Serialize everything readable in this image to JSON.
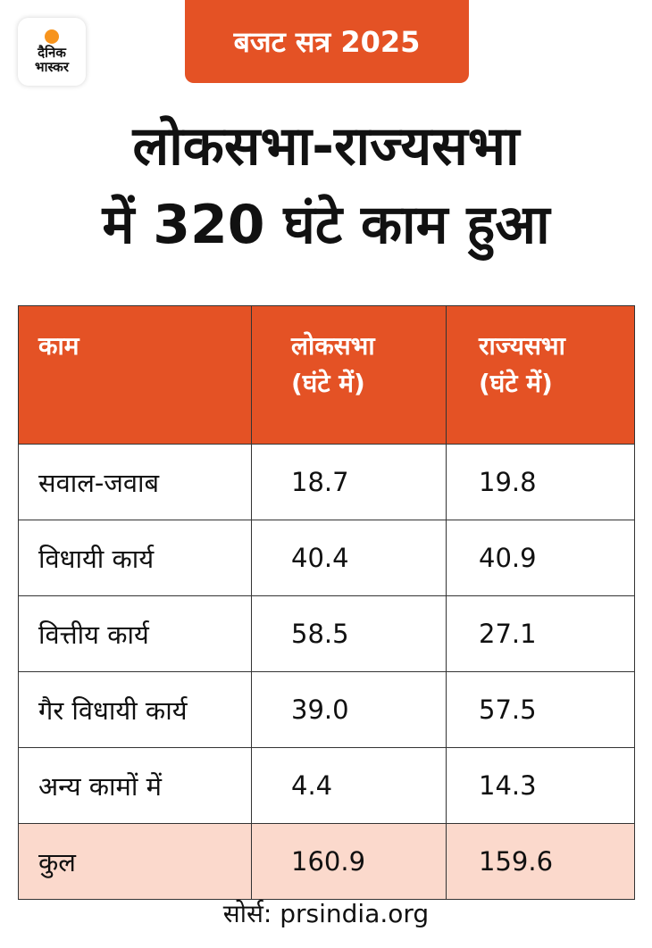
{
  "logo": {
    "line1": "दैनिक",
    "line2": "भास्कर"
  },
  "badge": "बजट सत्र 2025",
  "title": {
    "line1": "लोकसभा-राज्यसभा",
    "line2": "में 320 घंटे काम हुआ"
  },
  "table": {
    "headers": [
      {
        "line1": "काम",
        "line2": ""
      },
      {
        "line1": "लोकसभा",
        "line2": "(घंटे में)"
      },
      {
        "line1": "राज्यसभा",
        "line2": "(घंटे में)"
      }
    ],
    "rows": [
      {
        "label": "सवाल-जवाब",
        "loksabha": "18.7",
        "rajyasabha": "19.8"
      },
      {
        "label": "विधायी कार्य",
        "loksabha": "40.4",
        "rajyasabha": "40.9"
      },
      {
        "label": "वित्तीय कार्य",
        "loksabha": "58.5",
        "rajyasabha": "27.1"
      },
      {
        "label": "गैर विधायी कार्य",
        "loksabha": "39.0",
        "rajyasabha": "57.5"
      },
      {
        "label": "अन्य कामों में",
        "loksabha": "4.4",
        "rajyasabha": "14.3"
      }
    ],
    "total": {
      "label": "कुल",
      "loksabha": "160.9",
      "rajyasabha": "159.6"
    }
  },
  "source": "सोर्स: prsindia.org",
  "colors": {
    "accent": "#e45225",
    "total_row": "#fbd9cc",
    "logo_sun": "#f7941d"
  }
}
